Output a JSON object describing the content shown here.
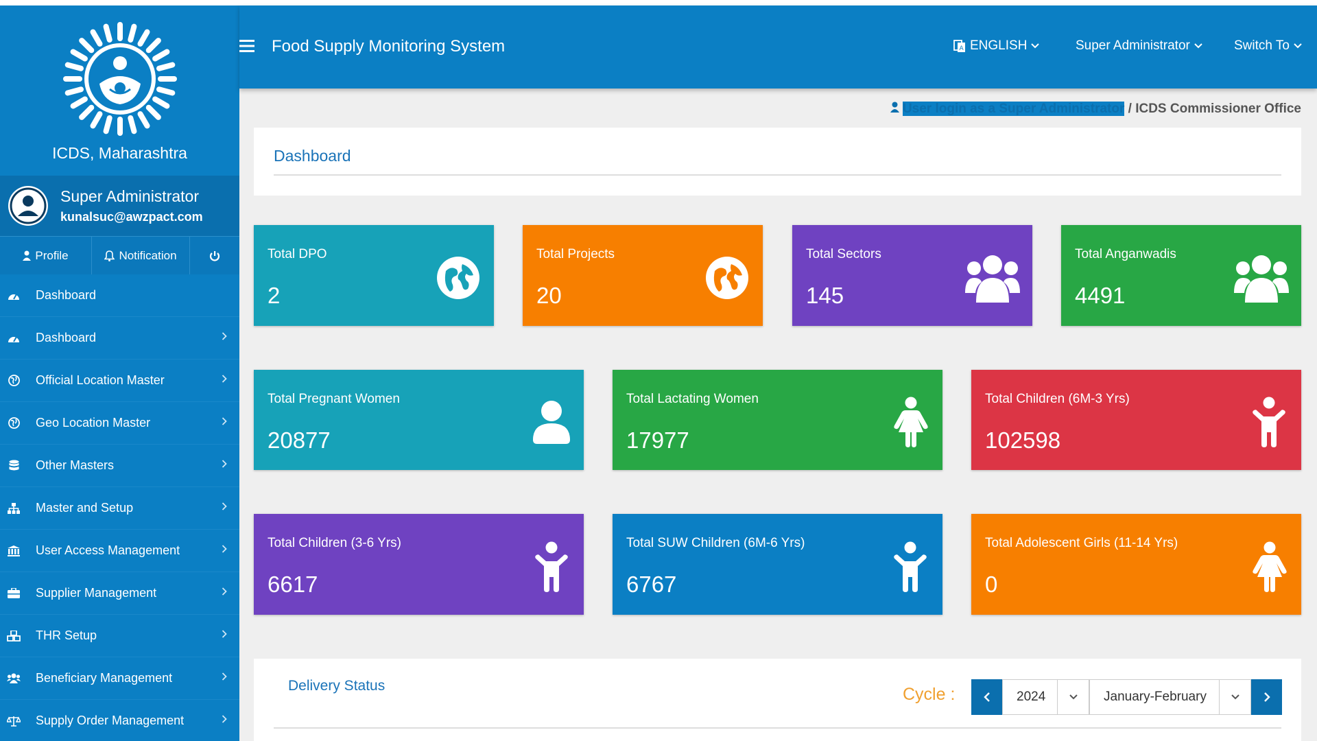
{
  "sidebar": {
    "brand_name": "ICDS, Maharashtra",
    "user": {
      "name": "Super Administrator",
      "email": "kunalsuc@awzpact.com"
    },
    "actions": {
      "profile": "Profile",
      "notification": "Notification"
    },
    "menu": [
      {
        "label": "Dashboard",
        "icon": "dashboard-icon",
        "has_children": false
      },
      {
        "label": "Dashboard",
        "icon": "dashboard-icon",
        "has_children": true
      },
      {
        "label": "Official Location Master",
        "icon": "globe-icon",
        "has_children": true
      },
      {
        "label": "Geo Location Master",
        "icon": "globe-icon",
        "has_children": true
      },
      {
        "label": "Other Masters",
        "icon": "database-icon",
        "has_children": true
      },
      {
        "label": "Master and Setup",
        "icon": "sitemap-icon",
        "has_children": true
      },
      {
        "label": "User Access Management",
        "icon": "bank-icon",
        "has_children": true
      },
      {
        "label": "Supplier Management",
        "icon": "briefcase-icon",
        "has_children": true
      },
      {
        "label": "THR Setup",
        "icon": "cubes-icon",
        "has_children": true
      },
      {
        "label": "Beneficiary Management",
        "icon": "users-icon",
        "has_children": true
      },
      {
        "label": "Supply Order Management",
        "icon": "balance-scale-icon",
        "has_children": true
      }
    ]
  },
  "header": {
    "title": "Food Supply Monitoring System",
    "language": "ENGLISH",
    "role": "Super Administrator",
    "switch": "Switch To"
  },
  "login_line": {
    "prefix": "User login as a Super Administrator",
    "suffix": " / ICDS Commissioner Office"
  },
  "page_title": "Dashboard",
  "cards": [
    {
      "label": "Total DPO",
      "value": "2",
      "color": "#17a2b8",
      "icon": "globe-icon"
    },
    {
      "label": "Total Projects",
      "value": "20",
      "color": "#f77f00",
      "icon": "globe-icon"
    },
    {
      "label": "Total Sectors",
      "value": "145",
      "color": "#6f42c1",
      "icon": "users-icon"
    },
    {
      "label": "Total Anganwadis",
      "value": "4491",
      "color": "#28a745",
      "icon": "users-icon"
    },
    {
      "label": "Total Pregnant Women",
      "value": "20877",
      "color": "#17a2b8",
      "icon": "user-icon"
    },
    {
      "label": "Total Lactating Women",
      "value": "17977",
      "color": "#28a745",
      "icon": "female-icon"
    },
    {
      "label": "Total Children (6M-3 Yrs)",
      "value": "102598",
      "color": "#dc3545",
      "icon": "child-icon"
    },
    {
      "label": "Total Children (3-6 Yrs)",
      "value": "6617",
      "color": "#6f42c1",
      "icon": "child-icon"
    },
    {
      "label": "Total SUW Children (6M-6 Yrs)",
      "value": "6767",
      "color": "#0b7fc4",
      "icon": "child-icon"
    },
    {
      "label": "Total Adolescent Girls (11-14 Yrs)",
      "value": "0",
      "color": "#f77f00",
      "icon": "female-icon"
    }
  ],
  "delivery": {
    "title": "Delivery Status",
    "cycle_label": "Cycle :",
    "year": "2024",
    "period": "January-February"
  }
}
